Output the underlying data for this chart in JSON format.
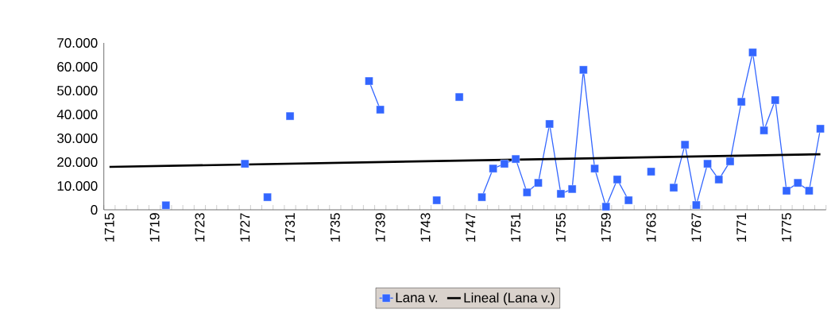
{
  "chart_data": {
    "type": "line",
    "series": [
      {
        "name": "Lana v.",
        "color": "#3366ff",
        "marker": "square",
        "x": [
          1720,
          1721,
          1722,
          1723,
          1724,
          1725,
          1726,
          1727,
          1728,
          1729,
          1730,
          1731,
          1732,
          1733,
          1734,
          1735,
          1736,
          1737,
          1738,
          1739,
          1740,
          1741,
          1742,
          1743,
          1744,
          1745,
          1746,
          1747,
          1748,
          1749,
          1750,
          1751,
          1752,
          1753,
          1754,
          1755,
          1756,
          1757,
          1758,
          1759,
          1760,
          1761,
          1762,
          1763,
          1764,
          1765,
          1766,
          1767,
          1768,
          1769,
          1770,
          1771,
          1772,
          1773,
          1774,
          1775,
          1776,
          1777,
          1778
        ],
        "values": [
          1900,
          null,
          null,
          null,
          null,
          null,
          null,
          19300,
          null,
          5300,
          null,
          39300,
          null,
          null,
          null,
          null,
          null,
          null,
          54000,
          42000,
          null,
          null,
          null,
          null,
          4000,
          null,
          47300,
          null,
          5300,
          17300,
          19300,
          21300,
          7300,
          11300,
          36000,
          6700,
          8700,
          58700,
          17300,
          1300,
          12700,
          4000,
          null,
          16000,
          null,
          9300,
          27300,
          2000,
          19300,
          12700,
          20300,
          45300,
          66000,
          33300,
          46000,
          8000,
          11300,
          8000,
          34000
        ]
      },
      {
        "name": "Lineal (Lana v.)",
        "type": "line",
        "color": "#000000",
        "marker": "none",
        "x": [
          1715,
          1778
        ],
        "values": [
          18000,
          23300
        ]
      }
    ],
    "xlim": [
      1714.5,
      1778.5
    ],
    "xticks": [
      1715,
      1719,
      1723,
      1727,
      1731,
      1735,
      1739,
      1743,
      1747,
      1751,
      1755,
      1759,
      1763,
      1767,
      1771,
      1775
    ],
    "ylim": [
      0,
      70000
    ],
    "yticks": [
      0,
      {
        "value": 10000,
        "label": "10.000"
      },
      {
        "value": 20000,
        "label": "20.000"
      },
      {
        "value": 30000,
        "label": "30.000"
      },
      {
        "value": 40000,
        "label": "40.000"
      },
      {
        "value": 50000,
        "label": "50.000"
      },
      {
        "value": 60000,
        "label": "60.000"
      },
      {
        "value": 70000,
        "label": "70.000"
      }
    ],
    "legend": "bottom"
  }
}
